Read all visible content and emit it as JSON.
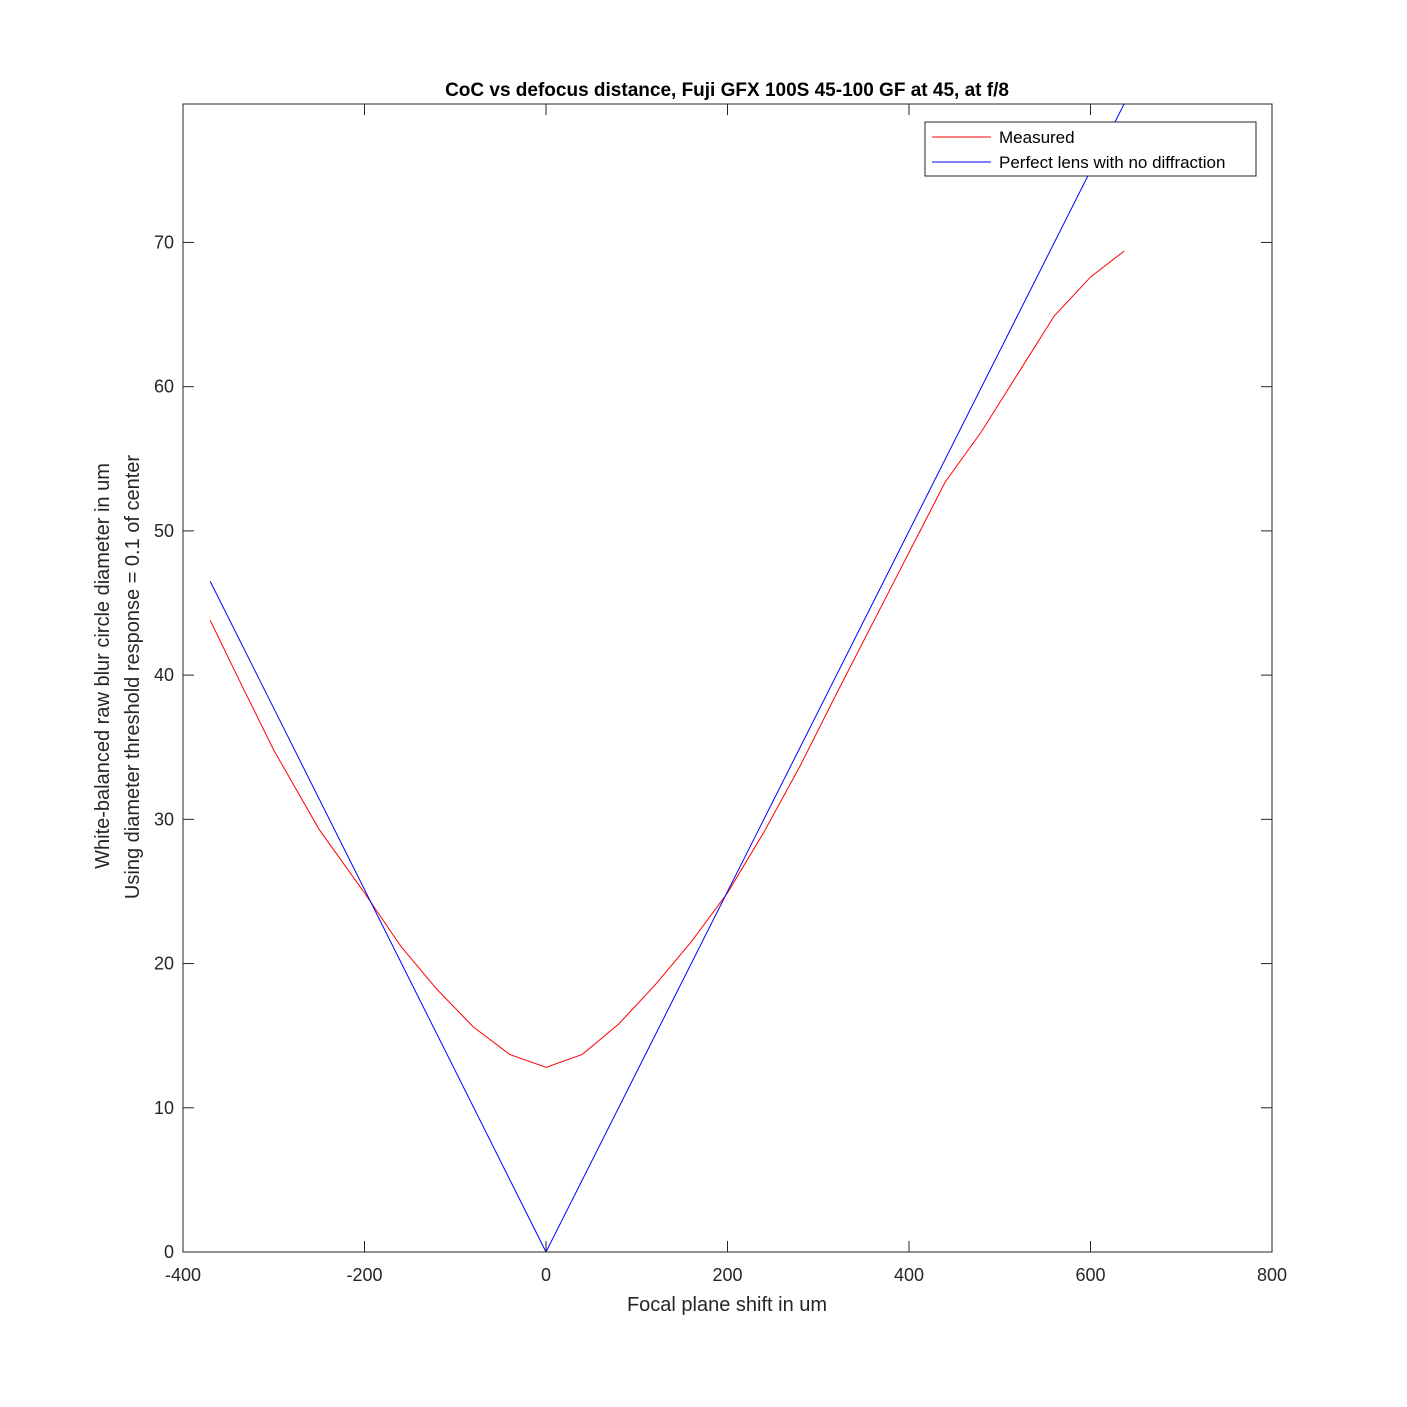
{
  "chart_data": {
    "type": "line",
    "title": "CoC vs defocus distance, Fuji GFX 100S 45-100 GF at 45, at f/8",
    "xlabel": "Focal plane shift in um",
    "ylabel": [
      "White-balanced raw blur circle diameter in um",
      "Using diameter threshold response = 0.1 of center"
    ],
    "xlim": [
      -400,
      800
    ],
    "ylim": [
      0,
      79.6
    ],
    "xticks": [
      -400,
      -200,
      0,
      200,
      400,
      600,
      800
    ],
    "xtick_labels": [
      "-400",
      "-200",
      "0",
      "200",
      "400",
      "600",
      "800"
    ],
    "yticks": [
      0,
      10,
      20,
      30,
      40,
      50,
      60,
      70
    ],
    "ytick_labels": [
      "0",
      "10",
      "20",
      "30",
      "40",
      "50",
      "60",
      "70"
    ],
    "grid": false,
    "legend_position": "top-right",
    "series": [
      {
        "name": "Measured",
        "color": "#ff0000",
        "x": [
          -370,
          -340,
          -300,
          -250,
          -200,
          -160,
          -120,
          -80,
          -40,
          0,
          40,
          80,
          120,
          160,
          200,
          240,
          280,
          320,
          360,
          400,
          440,
          480,
          520,
          560,
          600,
          637
        ],
        "y": [
          43.8,
          39.9,
          34.8,
          29.3,
          24.9,
          21.2,
          18.2,
          15.6,
          13.7,
          12.8,
          13.7,
          15.8,
          18.5,
          21.5,
          24.9,
          29.1,
          33.7,
          38.7,
          43.6,
          48.5,
          53.4,
          56.9,
          60.9,
          64.9,
          67.6,
          69.4
        ]
      },
      {
        "name": "Perfect lens with no diffraction",
        "color": "#0000ff",
        "x": [
          -370,
          0,
          637
        ],
        "y": [
          46.5,
          0,
          79.6
        ]
      }
    ]
  }
}
